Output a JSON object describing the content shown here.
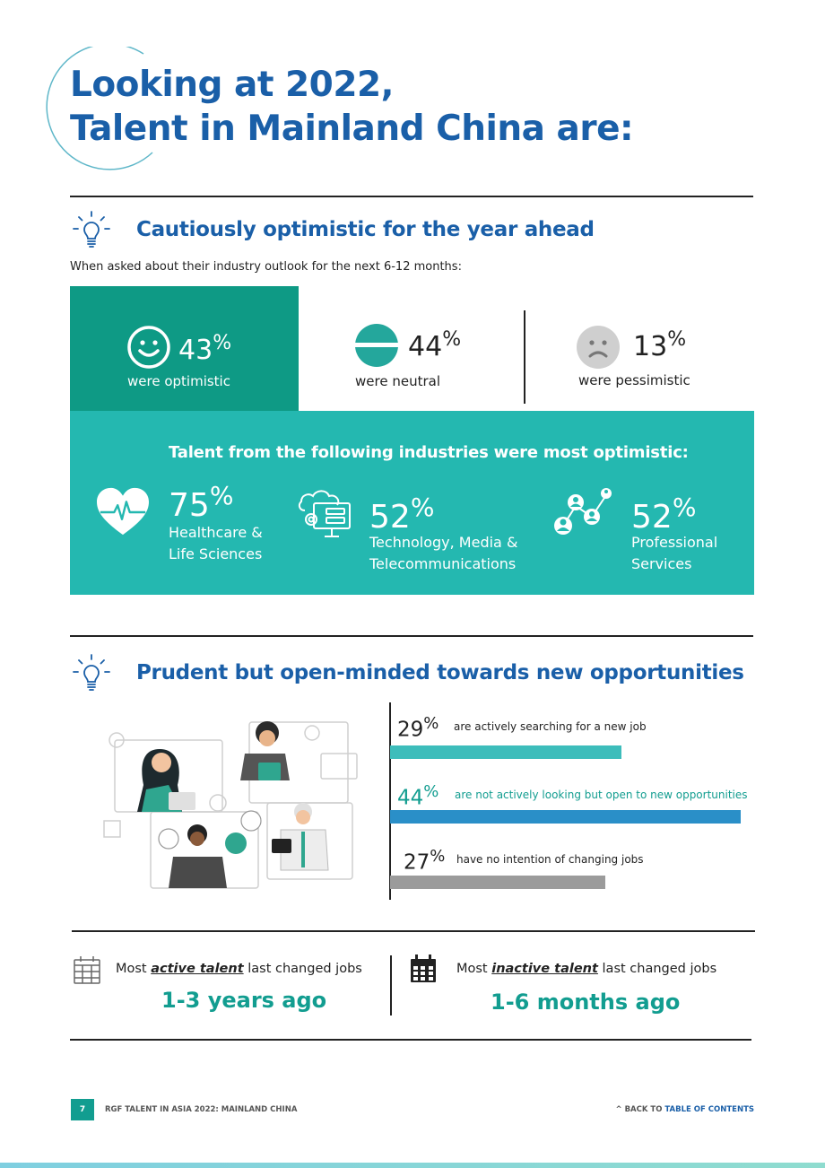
{
  "page": {
    "title_line1": "Looking at 2022,",
    "title_line2": "Talent in Mainland China are:"
  },
  "section1": {
    "heading": "Cautiously optimistic for the year ahead",
    "intro": "When asked about their industry outlook for the next 6-12 months:",
    "outlook": [
      {
        "value": "43",
        "unit": "%",
        "label": "were optimistic",
        "icon": "smiley-face-icon"
      },
      {
        "value": "44",
        "unit": "%",
        "label": "were neutral",
        "icon": "neutral-face-icon"
      },
      {
        "value": "13",
        "unit": "%",
        "label": "were pessimistic",
        "icon": "sad-face-icon"
      }
    ],
    "industries_heading": "Talent from the following industries were most optimistic:",
    "industries": [
      {
        "value": "75",
        "unit": "%",
        "label_line1": "Healthcare &",
        "label_line2": "Life Sciences",
        "icon": "heart-pulse-icon"
      },
      {
        "value": "52",
        "unit": "%",
        "label_line1": "Technology, Media &",
        "label_line2": "Telecommunications",
        "icon": "cloud-computer-icon"
      },
      {
        "value": "52",
        "unit": "%",
        "label_line1": "Professional",
        "label_line2": "Services",
        "icon": "network-people-icon"
      }
    ]
  },
  "section2": {
    "heading": "Prudent but open-minded towards new opportunities",
    "bars": [
      {
        "value": "29",
        "unit": "%",
        "text": "are actively searching for a new job",
        "share": 29,
        "color": "#3dbdbb"
      },
      {
        "value": "44",
        "unit": "%",
        "text": "are not actively looking but open to new opportunities",
        "share": 44,
        "color": "#2a8fc8"
      },
      {
        "value": "27",
        "unit": "%",
        "text": "have no intention of changing jobs",
        "share": 27,
        "color": "#9b9b9b"
      }
    ]
  },
  "job_change": {
    "active": {
      "prefix": "Most ",
      "emph": "active talent",
      "suffix": " last changed jobs",
      "value": "1-3 years ago"
    },
    "inactive": {
      "prefix": "Most ",
      "emph": "inactive talent",
      "suffix": " last changed jobs",
      "value": "1-6 months ago"
    }
  },
  "footer": {
    "page_number": "7",
    "doc_title": "RGF TALENT IN ASIA 2022: MAINLAND CHINA",
    "back_prefix": "^ BACK TO ",
    "back_link": "TABLE OF CONTENTS"
  },
  "colors": {
    "heading_blue": "#1a5fa8",
    "teal_dark": "#0e9a85",
    "teal_band": "#24b8b0",
    "teal_text": "#129d90"
  }
}
